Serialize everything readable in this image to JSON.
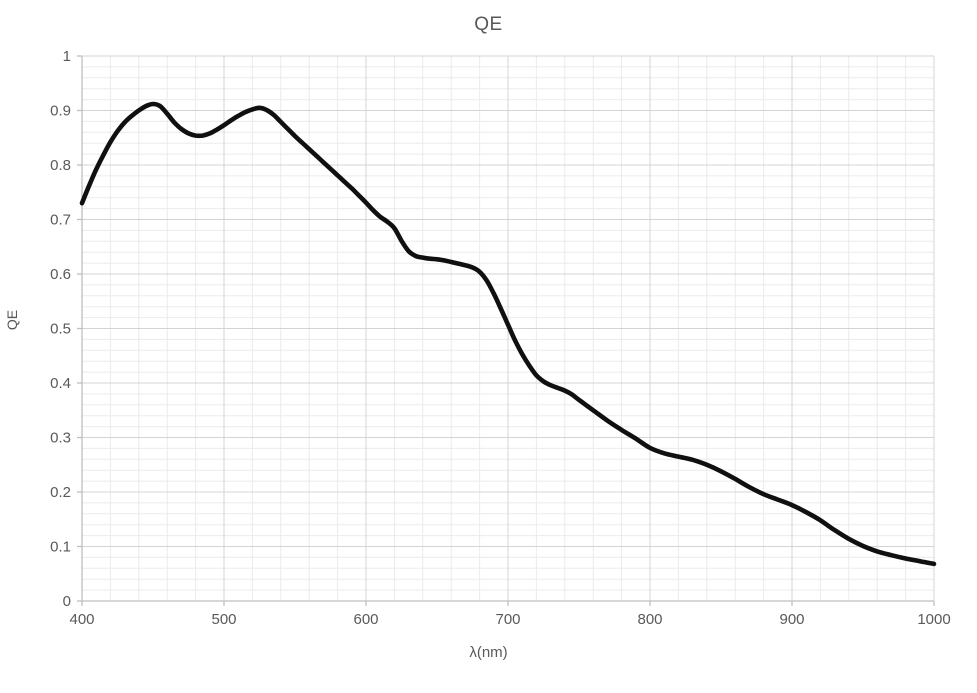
{
  "chart_data": {
    "type": "line",
    "title": "QE",
    "xlabel": "λ(nm)",
    "ylabel": "QE",
    "xlim": [
      400,
      1000
    ],
    "ylim": [
      0,
      1
    ],
    "grid": true,
    "legend": "none",
    "x_minor_step": 20,
    "y_minor_step": 0.02,
    "x_ticks": [
      {
        "value": 400,
        "label": "400"
      },
      {
        "value": 500,
        "label": "500"
      },
      {
        "value": 600,
        "label": "600"
      },
      {
        "value": 700,
        "label": "700"
      },
      {
        "value": 800,
        "label": "800"
      },
      {
        "value": 900,
        "label": "900"
      },
      {
        "value": 1000,
        "label": "1000"
      }
    ],
    "y_ticks": [
      {
        "value": 0,
        "label": "0"
      },
      {
        "value": 0.1,
        "label": "0.1"
      },
      {
        "value": 0.2,
        "label": "0.2"
      },
      {
        "value": 0.3,
        "label": "0.3"
      },
      {
        "value": 0.4,
        "label": "0.4"
      },
      {
        "value": 0.5,
        "label": "0.5"
      },
      {
        "value": 0.6,
        "label": "0.6"
      },
      {
        "value": 0.7,
        "label": "0.7"
      },
      {
        "value": 0.8,
        "label": "0.8"
      },
      {
        "value": 0.9,
        "label": "0.9"
      },
      {
        "value": 1,
        "label": "1"
      }
    ],
    "series": [
      {
        "name": "QE",
        "x": [
          400,
          405,
          410,
          415,
          420,
          425,
          430,
          435,
          440,
          445,
          450,
          455,
          460,
          465,
          470,
          475,
          480,
          485,
          490,
          495,
          500,
          505,
          510,
          515,
          520,
          525,
          530,
          535,
          540,
          545,
          550,
          555,
          560,
          565,
          570,
          575,
          580,
          585,
          590,
          595,
          600,
          605,
          610,
          615,
          620,
          625,
          630,
          635,
          640,
          645,
          650,
          655,
          660,
          665,
          670,
          675,
          680,
          685,
          690,
          695,
          700,
          705,
          710,
          715,
          720,
          725,
          730,
          735,
          740,
          745,
          750,
          760,
          770,
          780,
          790,
          800,
          810,
          820,
          830,
          840,
          850,
          860,
          870,
          880,
          890,
          900,
          910,
          920,
          930,
          940,
          950,
          960,
          970,
          980,
          990,
          1000
        ],
        "y": [
          0.73,
          0.762,
          0.792,
          0.818,
          0.842,
          0.862,
          0.878,
          0.89,
          0.9,
          0.908,
          0.912,
          0.908,
          0.894,
          0.878,
          0.866,
          0.858,
          0.854,
          0.854,
          0.858,
          0.865,
          0.873,
          0.882,
          0.89,
          0.897,
          0.902,
          0.905,
          0.901,
          0.892,
          0.879,
          0.866,
          0.853,
          0.841,
          0.829,
          0.817,
          0.805,
          0.793,
          0.781,
          0.769,
          0.757,
          0.744,
          0.731,
          0.717,
          0.705,
          0.696,
          0.684,
          0.661,
          0.642,
          0.633,
          0.63,
          0.628,
          0.627,
          0.625,
          0.622,
          0.619,
          0.616,
          0.612,
          0.604,
          0.588,
          0.564,
          0.536,
          0.507,
          0.478,
          0.453,
          0.432,
          0.414,
          0.403,
          0.396,
          0.391,
          0.386,
          0.379,
          0.369,
          0.35,
          0.331,
          0.314,
          0.298,
          0.281,
          0.271,
          0.265,
          0.259,
          0.25,
          0.238,
          0.224,
          0.209,
          0.196,
          0.186,
          0.176,
          0.163,
          0.148,
          0.13,
          0.114,
          0.101,
          0.091,
          0.084,
          0.078,
          0.073,
          0.068
        ]
      }
    ],
    "colors": {
      "line": "#101010",
      "grid_minor": "#ebebeb",
      "grid_major": "#d4d4d4",
      "axis": "#bfbfbf",
      "text": "#595959"
    }
  }
}
